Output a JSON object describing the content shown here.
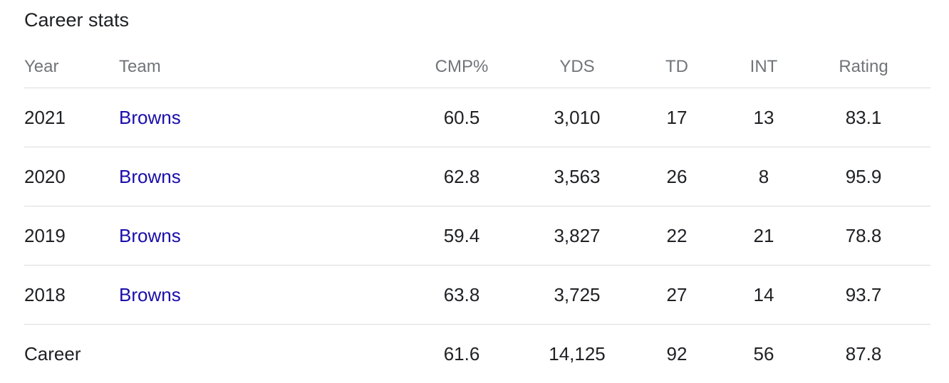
{
  "title": "Career stats",
  "columns": {
    "year": "Year",
    "team": "Team",
    "cmp": "CMP%",
    "yds": "YDS",
    "td": "TD",
    "int": "INT",
    "rating": "Rating"
  },
  "rows": [
    {
      "year": "2021",
      "team": "Browns",
      "cmp": "60.5",
      "yds": "3,010",
      "td": "17",
      "int": "13",
      "rating": "83.1"
    },
    {
      "year": "2020",
      "team": "Browns",
      "cmp": "62.8",
      "yds": "3,563",
      "td": "26",
      "int": "8",
      "rating": "95.9"
    },
    {
      "year": "2019",
      "team": "Browns",
      "cmp": "59.4",
      "yds": "3,827",
      "td": "22",
      "int": "21",
      "rating": "78.8"
    },
    {
      "year": "2018",
      "team": "Browns",
      "cmp": "63.8",
      "yds": "3,725",
      "td": "27",
      "int": "14",
      "rating": "93.7"
    }
  ],
  "career": {
    "label": "Career",
    "cmp": "61.6",
    "yds": "14,125",
    "td": "92",
    "int": "56",
    "rating": "87.8"
  },
  "colors": {
    "link": "#1a0dab",
    "header_text": "#70757a",
    "divider": "#dadce0"
  }
}
